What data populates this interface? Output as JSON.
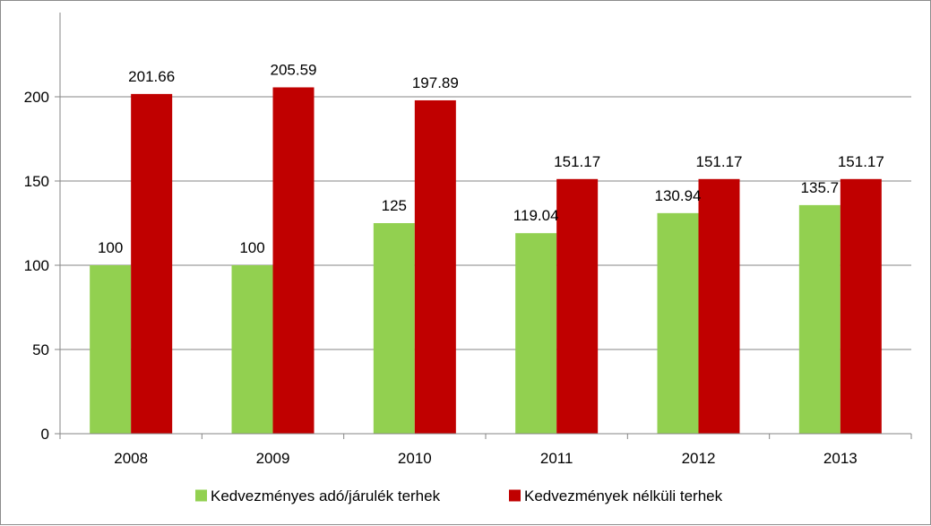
{
  "chart_data": {
    "type": "bar",
    "categories": [
      "2008",
      "2009",
      "2010",
      "2011",
      "2012",
      "2013"
    ],
    "series": [
      {
        "name": "Kedvezményes adó/járulék terhek",
        "color": "#92d050",
        "values": [
          100,
          100,
          125,
          119.04,
          130.94,
          135.7
        ],
        "labels": [
          "100",
          "100",
          "125",
          "119.04",
          "130.94",
          "135.7"
        ]
      },
      {
        "name": "Kedvezmények nélküli terhek",
        "color": "#c00000",
        "values": [
          201.66,
          205.59,
          197.89,
          151.17,
          151.17,
          151.17
        ],
        "labels": [
          "201.66",
          "205.59",
          "197.89",
          "151.17",
          "151.17",
          "151.17"
        ]
      }
    ],
    "yticks": [
      "0",
      "50",
      "100",
      "150",
      "200"
    ],
    "ylim": [
      0,
      250
    ],
    "grid": true,
    "legend_position": "bottom",
    "gridline_color": "#868686"
  }
}
